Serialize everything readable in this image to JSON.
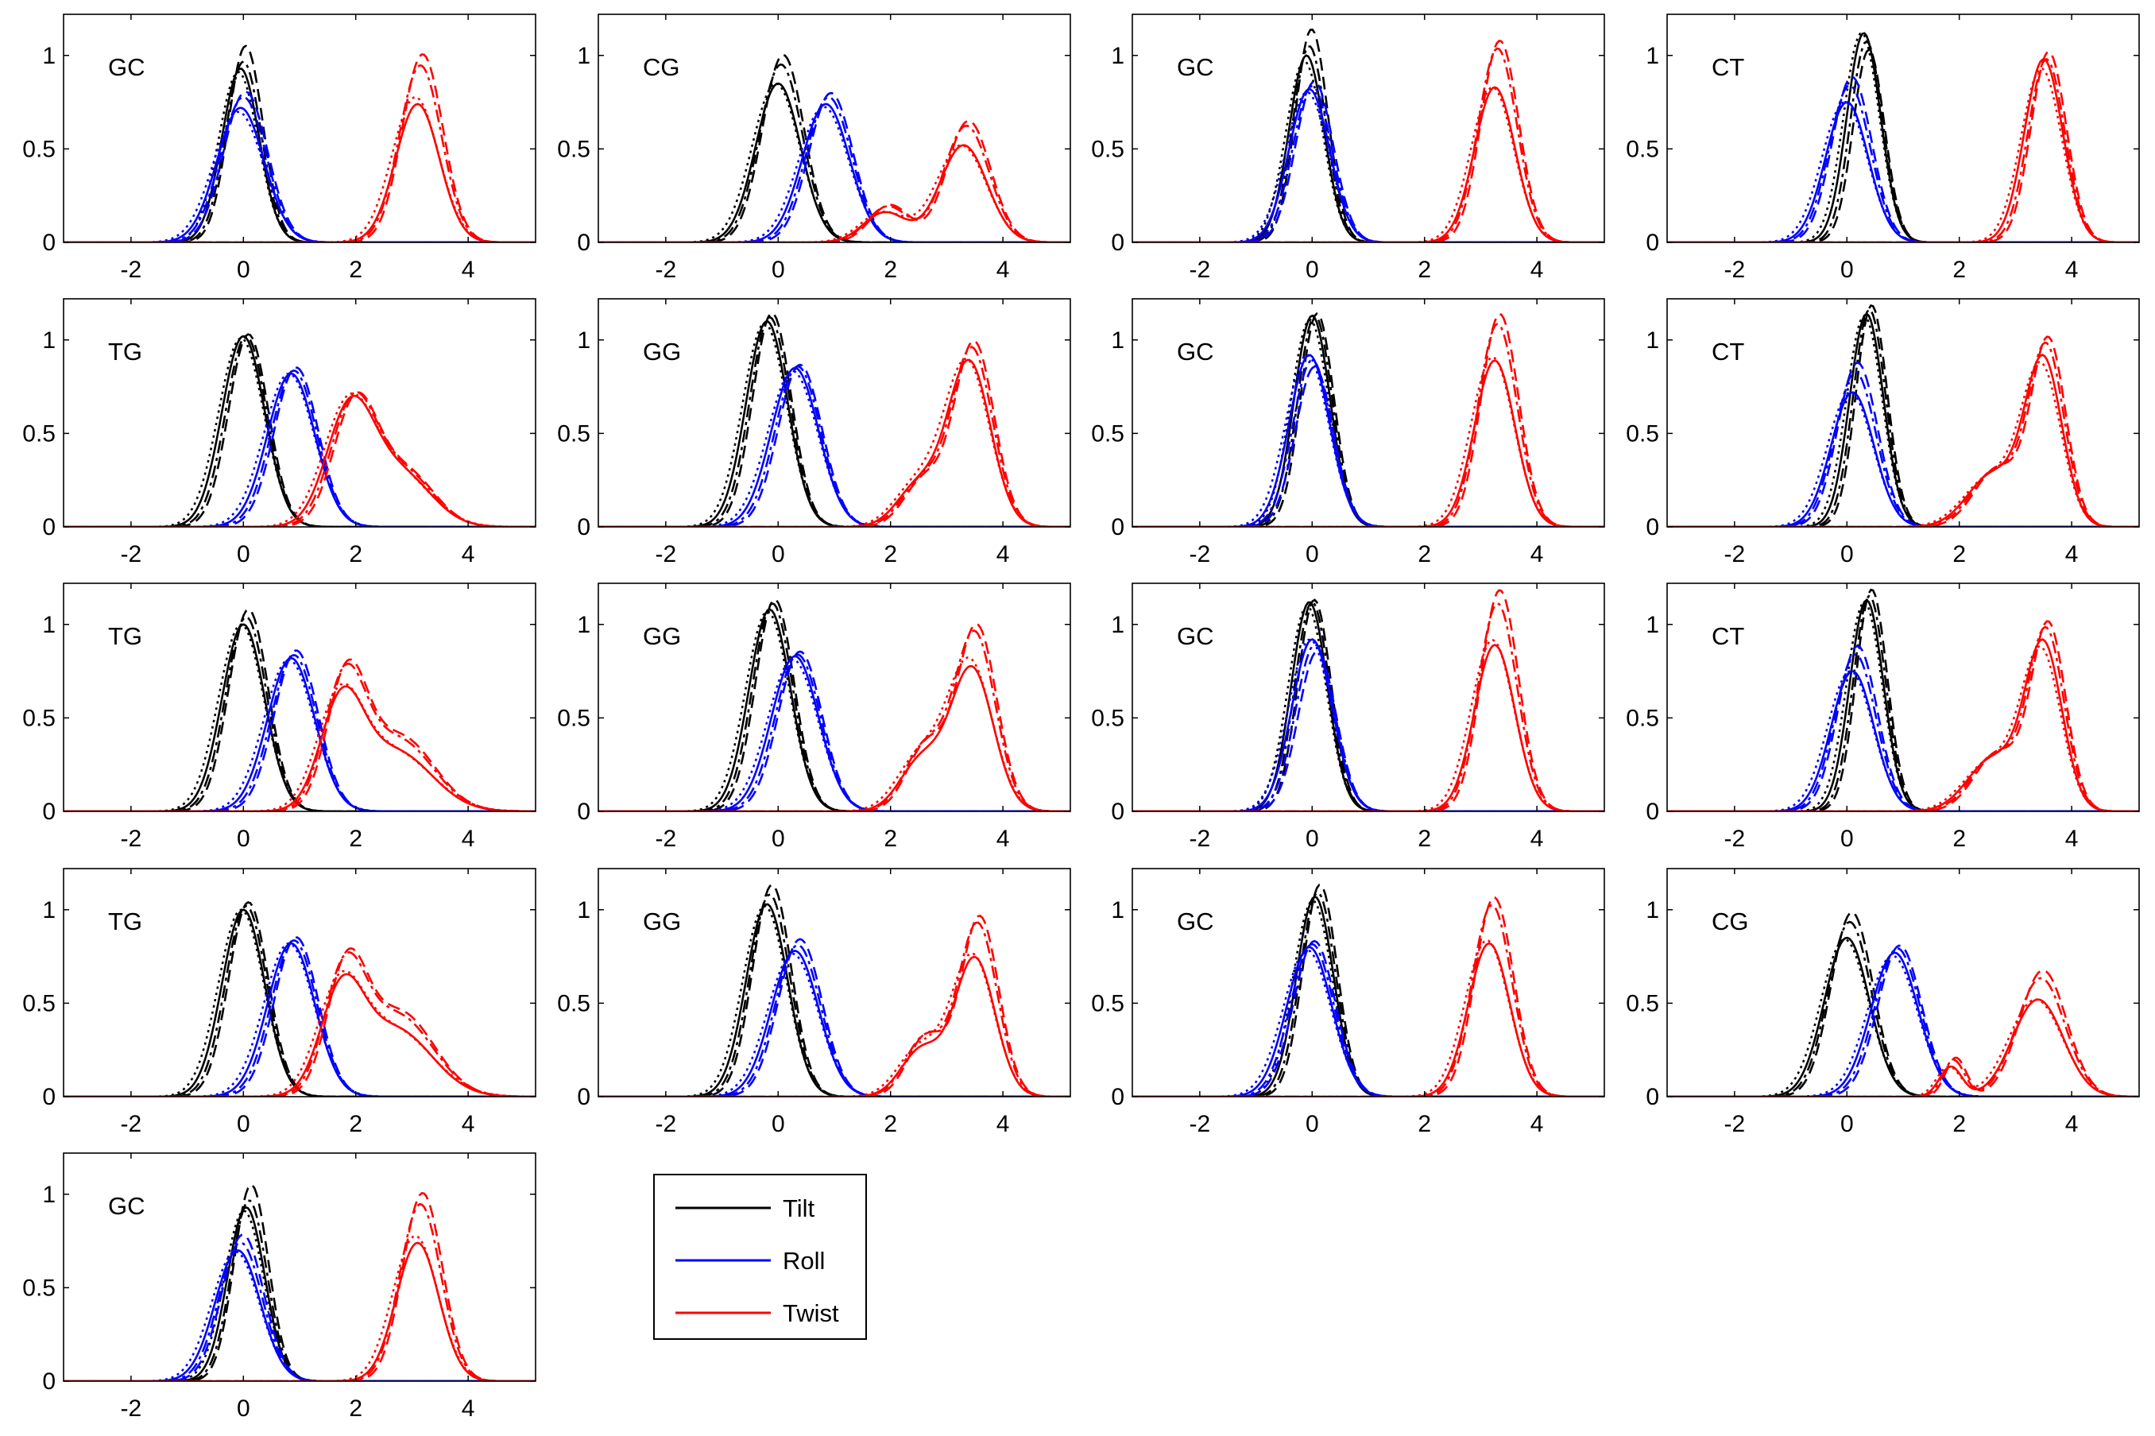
{
  "chart_data": {
    "type": "line",
    "layout": {
      "rows": 5,
      "cols": 4,
      "panel_count": 17,
      "legend_cell": [
        4,
        1
      ]
    },
    "xlim": [
      -3.2,
      5.2
    ],
    "ylim": [
      0,
      1.22
    ],
    "xticks": [
      -2,
      0,
      2,
      4
    ],
    "yticks": [
      0,
      0.5,
      1
    ],
    "xticklabels": [
      "-2",
      "0",
      "2",
      "4"
    ],
    "yticklabels": [
      "0",
      "0.5",
      "1"
    ],
    "line_styles": [
      "solid",
      "dashed",
      "dashdot",
      "dotted"
    ],
    "legend": {
      "placement": "lower-center",
      "entries": [
        {
          "label": "Tilt",
          "color": "#000000"
        },
        {
          "label": "Roll",
          "color": "#0000ff"
        },
        {
          "label": "Twist",
          "color": "#ff0000"
        }
      ]
    },
    "panels": [
      {
        "title": "GC",
        "series": [
          {
            "component": "Tilt",
            "peaks": [
              [
                -0.05,
                0.33,
                0.93
              ]
            ],
            "var_amp": [
              1.0,
              1.13,
              1.04,
              0.98
            ]
          },
          {
            "component": "Roll",
            "peaks": [
              [
                -0.05,
                0.42,
                0.72
              ]
            ],
            "var_amp": [
              1.0,
              1.12,
              1.08,
              0.97
            ]
          },
          {
            "component": "Twist",
            "peaks": [
              [
                3.1,
                0.39,
                0.74
              ]
            ],
            "var_amp": [
              1.0,
              1.36,
              1.28,
              1.05
            ]
          }
        ]
      },
      {
        "title": "CG",
        "series": [
          {
            "component": "Tilt",
            "peaks": [
              [
                0.0,
                0.4,
                0.85
              ]
            ],
            "var_amp": [
              1.0,
              1.18,
              1.12,
              1.0
            ]
          },
          {
            "component": "Roll",
            "peaks": [
              [
                0.85,
                0.42,
                0.74
              ]
            ],
            "var_amp": [
              1.0,
              1.08,
              1.05,
              0.98
            ]
          },
          {
            "component": "Twist",
            "peaks": [
              [
                3.3,
                0.42,
                0.52
              ],
              [
                1.9,
                0.38,
                0.16
              ]
            ],
            "var_amp": [
              1.0,
              1.25,
              1.2,
              1.0
            ]
          }
        ]
      },
      {
        "title": "GC",
        "series": [
          {
            "component": "Tilt",
            "peaks": [
              [
                -0.1,
                0.31,
                1.0
              ]
            ],
            "var_amp": [
              1.0,
              1.14,
              1.05,
              0.97
            ]
          },
          {
            "component": "Roll",
            "peaks": [
              [
                -0.05,
                0.36,
                0.82
              ]
            ],
            "var_amp": [
              1.0,
              1.05,
              1.02,
              0.98
            ]
          },
          {
            "component": "Twist",
            "peaks": [
              [
                3.25,
                0.36,
                0.83
              ]
            ],
            "var_amp": [
              1.0,
              1.3,
              1.25,
              1.0
            ]
          }
        ]
      },
      {
        "title": "CT",
        "series": [
          {
            "component": "Tilt",
            "peaks": [
              [
                0.3,
                0.3,
                1.12
              ]
            ],
            "var_amp": [
              1.0,
              0.92,
              0.96,
              1.0
            ]
          },
          {
            "component": "Roll",
            "peaks": [
              [
                0.0,
                0.38,
                0.75
              ]
            ],
            "var_amp": [
              1.0,
              1.18,
              1.12,
              1.0
            ]
          },
          {
            "component": "Twist",
            "peaks": [
              [
                3.5,
                0.34,
                0.98
              ]
            ],
            "var_amp": [
              1.0,
              1.04,
              1.0,
              0.95
            ]
          }
        ]
      },
      {
        "title": "TG",
        "series": [
          {
            "component": "Tilt",
            "peaks": [
              [
                0.0,
                0.38,
                1.02
              ]
            ],
            "var_amp": [
              1.0,
              1.01,
              1.0,
              0.99
            ]
          },
          {
            "component": "Roll",
            "peaks": [
              [
                0.85,
                0.42,
                0.82
              ]
            ],
            "var_amp": [
              1.0,
              1.04,
              1.02,
              1.0
            ]
          },
          {
            "component": "Twist",
            "peaks": [
              [
                1.9,
                0.42,
                0.62
              ],
              [
                2.8,
                0.55,
                0.28
              ]
            ],
            "var_amp": [
              1.0,
              1.05,
              1.04,
              1.0
            ]
          }
        ]
      },
      {
        "title": "GG",
        "series": [
          {
            "component": "Tilt",
            "peaks": [
              [
                -0.2,
                0.37,
                1.1
              ]
            ],
            "var_amp": [
              1.0,
              1.04,
              1.02,
              0.99
            ]
          },
          {
            "component": "Roll",
            "peaks": [
              [
                0.3,
                0.42,
                0.85
              ]
            ],
            "var_amp": [
              1.0,
              1.02,
              1.01,
              0.98
            ]
          },
          {
            "component": "Twist",
            "peaks": [
              [
                3.4,
                0.38,
                0.88
              ],
              [
                2.5,
                0.38,
                0.22
              ]
            ],
            "var_amp": [
              1.0,
              1.12,
              1.08,
              1.0
            ]
          }
        ]
      },
      {
        "title": "GC",
        "series": [
          {
            "component": "Tilt",
            "peaks": [
              [
                0.0,
                0.32,
                1.13
              ]
            ],
            "var_amp": [
              1.0,
              1.01,
              1.0,
              0.98
            ]
          },
          {
            "component": "Roll",
            "peaks": [
              [
                -0.05,
                0.36,
                0.92
              ]
            ],
            "var_amp": [
              1.0,
              0.93,
              0.97,
              1.0
            ]
          },
          {
            "component": "Twist",
            "peaks": [
              [
                3.25,
                0.36,
                0.89
              ]
            ],
            "var_amp": [
              1.0,
              1.28,
              1.22,
              1.02
            ]
          }
        ]
      },
      {
        "title": "CT",
        "series": [
          {
            "component": "Tilt",
            "peaks": [
              [
                0.35,
                0.3,
                1.14
              ]
            ],
            "var_amp": [
              1.0,
              1.04,
              1.02,
              0.99
            ]
          },
          {
            "component": "Roll",
            "peaks": [
              [
                0.1,
                0.38,
                0.72
              ]
            ],
            "var_amp": [
              1.0,
              1.22,
              1.15,
              1.0
            ]
          },
          {
            "component": "Twist",
            "peaks": [
              [
                3.5,
                0.33,
                0.88
              ],
              [
                2.6,
                0.45,
                0.28
              ]
            ],
            "var_amp": [
              1.0,
              1.12,
              1.08,
              0.95
            ]
          }
        ]
      },
      {
        "title": "TG",
        "series": [
          {
            "component": "Tilt",
            "peaks": [
              [
                0.0,
                0.38,
                1.0
              ]
            ],
            "var_amp": [
              1.0,
              1.08,
              1.04,
              1.0
            ]
          },
          {
            "component": "Roll",
            "peaks": [
              [
                0.85,
                0.42,
                0.82
              ]
            ],
            "var_amp": [
              1.0,
              1.05,
              1.02,
              0.99
            ]
          },
          {
            "component": "Twist",
            "peaks": [
              [
                1.75,
                0.38,
                0.55
              ],
              [
                2.7,
                0.65,
                0.32
              ]
            ],
            "var_amp": [
              1.0,
              1.25,
              1.2,
              1.0
            ]
          }
        ]
      },
      {
        "title": "GG",
        "series": [
          {
            "component": "Tilt",
            "peaks": [
              [
                -0.15,
                0.37,
                1.08
              ]
            ],
            "var_amp": [
              1.0,
              1.05,
              1.03,
              0.99
            ]
          },
          {
            "component": "Roll",
            "peaks": [
              [
                0.3,
                0.42,
                0.83
              ]
            ],
            "var_amp": [
              1.0,
              1.03,
              1.01,
              0.98
            ]
          },
          {
            "component": "Twist",
            "peaks": [
              [
                3.45,
                0.38,
                0.76
              ],
              [
                2.55,
                0.38,
                0.27
              ]
            ],
            "var_amp": [
              1.0,
              1.3,
              1.25,
              1.05
            ]
          }
        ]
      },
      {
        "title": "GC",
        "series": [
          {
            "component": "Tilt",
            "peaks": [
              [
                -0.05,
                0.32,
                1.12
              ]
            ],
            "var_amp": [
              1.0,
              1.01,
              1.0,
              0.98
            ]
          },
          {
            "component": "Roll",
            "peaks": [
              [
                0.0,
                0.36,
                0.92
              ]
            ],
            "var_amp": [
              1.0,
              0.93,
              0.97,
              1.0
            ]
          },
          {
            "component": "Twist",
            "peaks": [
              [
                3.25,
                0.36,
                0.89
              ]
            ],
            "var_amp": [
              1.0,
              1.33,
              1.25,
              1.03
            ]
          }
        ]
      },
      {
        "title": "CT",
        "series": [
          {
            "component": "Tilt",
            "peaks": [
              [
                0.35,
                0.3,
                1.13
              ]
            ],
            "var_amp": [
              1.0,
              1.05,
              1.02,
              0.99
            ]
          },
          {
            "component": "Roll",
            "peaks": [
              [
                0.1,
                0.38,
                0.75
              ]
            ],
            "var_amp": [
              1.0,
              1.18,
              1.12,
              1.0
            ]
          },
          {
            "component": "Twist",
            "peaks": [
              [
                3.5,
                0.33,
                0.88
              ],
              [
                2.6,
                0.45,
                0.28
              ]
            ],
            "var_amp": [
              1.0,
              1.12,
              1.08,
              0.95
            ]
          }
        ]
      },
      {
        "title": "TG",
        "series": [
          {
            "component": "Tilt",
            "peaks": [
              [
                0.0,
                0.38,
                1.0
              ]
            ],
            "var_amp": [
              1.0,
              1.04,
              1.02,
              1.0
            ]
          },
          {
            "component": "Roll",
            "peaks": [
              [
                0.85,
                0.42,
                0.82
              ]
            ],
            "var_amp": [
              1.0,
              1.04,
              1.02,
              1.0
            ]
          },
          {
            "component": "Twist",
            "peaks": [
              [
                1.75,
                0.38,
                0.52
              ],
              [
                2.7,
                0.65,
                0.36
              ]
            ],
            "var_amp": [
              1.0,
              1.25,
              1.2,
              1.0
            ]
          }
        ]
      },
      {
        "title": "GG",
        "series": [
          {
            "component": "Tilt",
            "peaks": [
              [
                -0.2,
                0.37,
                1.03
              ]
            ],
            "var_amp": [
              1.0,
              1.1,
              1.05,
              0.99
            ]
          },
          {
            "component": "Roll",
            "peaks": [
              [
                0.3,
                0.42,
                0.78
              ]
            ],
            "var_amp": [
              1.0,
              1.08,
              1.04,
              0.98
            ]
          },
          {
            "component": "Twist",
            "peaks": [
              [
                3.5,
                0.36,
                0.74
              ],
              [
                2.55,
                0.36,
                0.25
              ]
            ],
            "var_amp": [
              1.0,
              1.3,
              1.25,
              1.02
            ]
          }
        ]
      },
      {
        "title": "GC",
        "series": [
          {
            "component": "Tilt",
            "peaks": [
              [
                0.05,
                0.33,
                1.07
              ]
            ],
            "var_amp": [
              1.0,
              1.06,
              1.02,
              0.98
            ]
          },
          {
            "component": "Roll",
            "peaks": [
              [
                -0.05,
                0.4,
                0.8
              ]
            ],
            "var_amp": [
              1.0,
              1.04,
              1.02,
              0.98
            ]
          },
          {
            "component": "Twist",
            "peaks": [
              [
                3.15,
                0.37,
                0.82
              ]
            ],
            "var_amp": [
              1.0,
              1.3,
              1.25,
              1.02
            ]
          }
        ]
      },
      {
        "title": "CG",
        "series": [
          {
            "component": "Tilt",
            "peaks": [
              [
                0.0,
                0.4,
                0.85
              ]
            ],
            "var_amp": [
              1.0,
              1.16,
              1.1,
              0.99
            ]
          },
          {
            "component": "Roll",
            "peaks": [
              [
                0.85,
                0.42,
                0.77
              ]
            ],
            "var_amp": [
              1.0,
              1.05,
              1.03,
              0.98
            ]
          },
          {
            "component": "Twist",
            "peaks": [
              [
                3.4,
                0.45,
                0.52
              ],
              [
                1.85,
                0.2,
                0.16
              ]
            ],
            "var_amp": [
              1.0,
              1.3,
              1.22,
              1.0
            ]
          }
        ]
      },
      {
        "title": "GC",
        "series": [
          {
            "component": "Tilt",
            "peaks": [
              [
                0.05,
                0.33,
                0.93
              ]
            ],
            "var_amp": [
              1.0,
              1.13,
              1.04,
              0.98
            ]
          },
          {
            "component": "Roll",
            "peaks": [
              [
                -0.1,
                0.4,
                0.7
              ]
            ],
            "var_amp": [
              1.0,
              1.12,
              1.06,
              0.99
            ]
          },
          {
            "component": "Twist",
            "peaks": [
              [
                3.1,
                0.38,
                0.74
              ]
            ],
            "var_amp": [
              1.0,
              1.36,
              1.28,
              1.05
            ]
          }
        ]
      }
    ]
  }
}
